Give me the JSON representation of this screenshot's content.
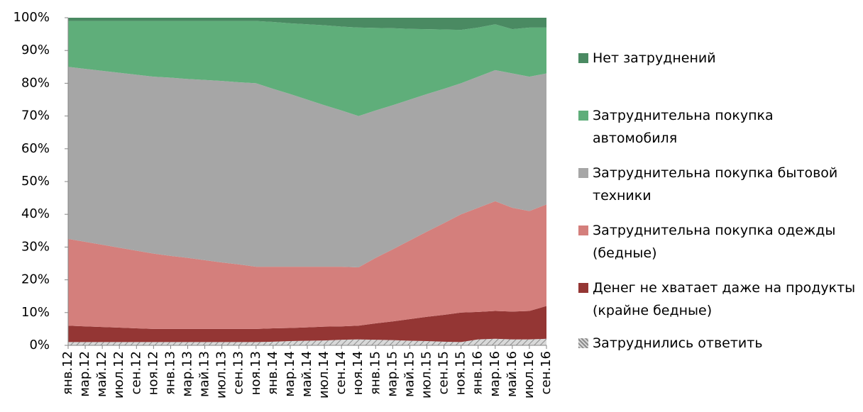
{
  "chart_data": {
    "type": "stacked-area",
    "categories": [
      "янв.12",
      "мар.12",
      "май.12",
      "июл.12",
      "сен.12",
      "ноя.12",
      "янв.13",
      "мар.13",
      "май.13",
      "июл.13",
      "сен.13",
      "ноя.13",
      "янв.14",
      "мар.14",
      "май.14",
      "июл.14",
      "сен.14",
      "ноя.14",
      "янв.15",
      "мар.15",
      "май.15",
      "июл.15",
      "сен.15",
      "ноя.15",
      "янв.16",
      "мар.16",
      "май.16",
      "июл.16",
      "сен.16"
    ],
    "series": [
      {
        "name": "Затруднились ответить",
        "color": "#bfbfbf",
        "pattern": "hatch",
        "values": [
          1,
          1,
          1,
          1,
          1,
          1,
          1,
          1,
          1,
          1,
          1,
          1,
          1.1,
          1.3,
          1.4,
          1.5,
          1.7,
          1.8,
          1.7,
          1.6,
          1.4,
          1.3,
          1.1,
          1,
          1.8,
          2,
          1.8,
          1.8,
          2
        ]
      },
      {
        "name": "Денег не хватает даже на продукты (крайне бедные)",
        "color": "#943634",
        "values": [
          5,
          4.8,
          4.6,
          4.4,
          4.2,
          4,
          4,
          4,
          4,
          4,
          4,
          4,
          4.1,
          4,
          4.1,
          4.2,
          4.1,
          4.2,
          5,
          5.7,
          6.6,
          7.4,
          8.2,
          9,
          8.4,
          8.5,
          8.5,
          8.7,
          10
        ]
      },
      {
        "name": "Затруднительна покупка одежды (бедные)",
        "color": "#d47f7c",
        "values": [
          26.5,
          25.8,
          25.1,
          24.4,
          23.7,
          23,
          22.3,
          21.7,
          21,
          20.3,
          19.7,
          19,
          18.8,
          18.7,
          18.5,
          18.3,
          18.2,
          17.8,
          20,
          22,
          24,
          26,
          28,
          30,
          31.8,
          33.5,
          31.7,
          30.5,
          31
        ]
      },
      {
        "name": "Затруднительна покупка бытовой техники",
        "color": "#a6a6a6",
        "values": [
          52.5,
          52.8,
          53.1,
          53.4,
          53.7,
          54,
          54.4,
          54.6,
          55,
          55.4,
          55.6,
          56,
          54.3,
          52.7,
          51,
          49.3,
          47.7,
          46.2,
          45,
          44,
          43,
          42,
          41,
          40,
          40,
          40,
          41,
          41,
          40
        ]
      },
      {
        "name": "Затруднительна покупка автомобиля",
        "color": "#5fae7a",
        "values": [
          14,
          14.6,
          15.2,
          15.8,
          16.4,
          17,
          17.3,
          17.7,
          18,
          18.3,
          18.7,
          19,
          20.4,
          21.6,
          23,
          24.4,
          25.6,
          27,
          25.2,
          23.5,
          21.6,
          19.8,
          18.1,
          16.3,
          15,
          14,
          13.5,
          15,
          14
        ]
      },
      {
        "name": "Нет затруднений",
        "color": "#4a8a62",
        "values": [
          1,
          1,
          1,
          1,
          1,
          1,
          1,
          1,
          1,
          1,
          1,
          1,
          1.3,
          1.7,
          2,
          2.3,
          2.7,
          3,
          3.1,
          3.2,
          3.4,
          3.5,
          3.6,
          3.7,
          3,
          2,
          3.5,
          3,
          3
        ]
      }
    ],
    "ylim": [
      0,
      100
    ],
    "yticks": [
      {
        "value": 0,
        "label": "0%"
      },
      {
        "value": 10,
        "label": "10%"
      },
      {
        "value": 20,
        "label": "20%"
      },
      {
        "value": 30,
        "label": "30%"
      },
      {
        "value": 40,
        "label": "40%"
      },
      {
        "value": 50,
        "label": "50%"
      },
      {
        "value": 60,
        "label": "60%"
      },
      {
        "value": 70,
        "label": "70%"
      },
      {
        "value": 80,
        "label": "80%"
      },
      {
        "value": 90,
        "label": "90%"
      },
      {
        "value": 100,
        "label": "100%"
      }
    ],
    "legend": "right"
  }
}
